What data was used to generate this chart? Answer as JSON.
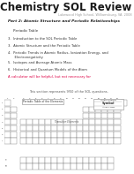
{
  "title": "Chemistry SOL Review",
  "subtitle_school": "Lakewood High School, Williamsburg, VA, 2008",
  "part_label": "Part 2: Atomic Structure and Periodic Relationships",
  "section_label": "Periodic Table",
  "topics": [
    "3.  Introduction to the SOL Periodic Table",
    "3.  Atomic Structure and the Periodic Table",
    "4.  Periodic Trends in Atomic Radius, Ionization Energy, and\n      Electronegativity",
    "5.  Isotopes and Average Atomic Mass",
    "6.  Historical and Quantum Models of the Atom"
  ],
  "red_note": "A calculator will be helpful, but not necessary for",
  "sol_note": "This section represents 9/50 of the SOL questions.",
  "bg_color": "#ffffff",
  "title_color": "#1a1a1a",
  "subtitle_color": "#999999",
  "part_color": "#222222",
  "topic_color": "#333333",
  "red_color": "#dd0044",
  "gray_note_color": "#555555",
  "pdf_bg": "#1a1a2e",
  "pdf_color": "#ffffff"
}
